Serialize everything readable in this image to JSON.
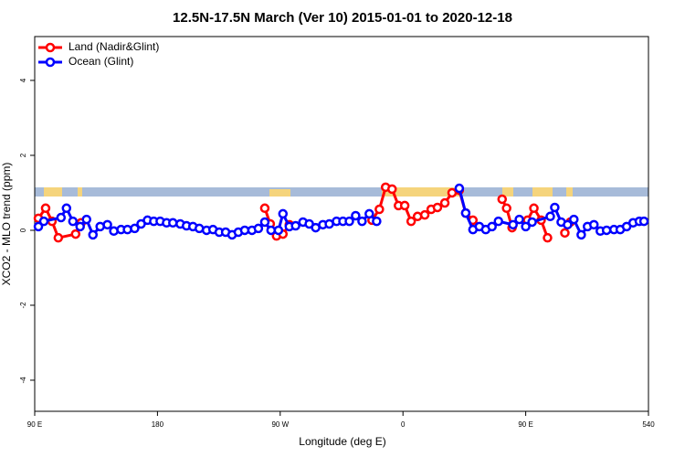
{
  "chart_data": {
    "type": "line",
    "title": "12.5N-17.5N March (Ver 10)   2015-01-01 to 2020-12-18",
    "x_label": "Longitude (deg E)",
    "y_label": "XCO2 - MLO trend (ppm)",
    "xlim": [
      90,
      540
    ],
    "ylim": [
      -4.83,
      5.17
    ],
    "xticks": [
      {
        "value": 90,
        "label": "90 E"
      },
      180,
      {
        "value": 270,
        "label": "90 W"
      },
      {
        "value": 360,
        "label": "0"
      },
      {
        "value": 450,
        "label": "90 E"
      },
      540
    ],
    "yticks": [
      -4,
      -2,
      0,
      2,
      4
    ],
    "legend": "top-left",
    "series": [
      {
        "name": "Land (Nadir&Glint)",
        "color": "#ff0000",
        "x": [
          92.7,
          98,
          102.7,
          107.3,
          120,
          124,
          null,
          258.7,
          262.7,
          267.3,
          272,
          276.7,
          null,
          337.3,
          342.7,
          347.3,
          352,
          356.7,
          361.3,
          366,
          370.7,
          376,
          380.7,
          385.3,
          390.7,
          396,
          401.3,
          406,
          411.3,
          null,
          432.7,
          436,
          440,
          null,
          451.3,
          456,
          461.3,
          466,
          null,
          478.7,
          482.7
        ],
        "values": [
          0.32,
          0.59,
          0.24,
          -0.2,
          -0.1,
          0.2,
          null,
          0.59,
          0.17,
          -0.15,
          -0.1,
          0.15,
          null,
          0.27,
          0.56,
          1.15,
          1.1,
          0.66,
          0.66,
          0.24,
          0.37,
          0.41,
          0.56,
          0.61,
          0.73,
          1.0,
          1.07,
          0.46,
          0.27,
          null,
          0.83,
          0.59,
          0.07,
          null,
          0.27,
          0.59,
          0.27,
          -0.2,
          null,
          -0.07,
          0.22
        ]
      },
      {
        "name": "Ocean (Glint)",
        "color": "#0000ff",
        "x": [
          92.7,
          96.7,
          109.3,
          113.3,
          118,
          123.3,
          128,
          132.7,
          138,
          143.3,
          148,
          153.3,
          158,
          163.3,
          168,
          172.7,
          177.3,
          182,
          186.7,
          191.3,
          196.7,
          201.3,
          206,
          210.7,
          216,
          220.7,
          225.3,
          230,
          234.7,
          239.3,
          244,
          249.3,
          254,
          258.7,
          263.3,
          268.7,
          272,
          276.7,
          281.3,
          286.7,
          291.3,
          296,
          301.3,
          306,
          311.3,
          316,
          320.7,
          325.3,
          330,
          335.3,
          340.7,
          null,
          401.3,
          406,
          411.3,
          416,
          420.7,
          425.3,
          430,
          440.7,
          445.3,
          450,
          454.7,
          468,
          471.3,
          476,
          480.7,
          485.3,
          490.7,
          495.3,
          500,
          504.7,
          509.3,
          514.7,
          519.3,
          524,
          528.7,
          533.3,
          536.7
        ],
        "values": [
          0.1,
          0.24,
          0.34,
          0.59,
          0.24,
          0.1,
          0.29,
          -0.12,
          0.1,
          0.15,
          -0.02,
          0.02,
          0.02,
          0.05,
          0.17,
          0.27,
          0.24,
          0.24,
          0.2,
          0.2,
          0.17,
          0.12,
          0.1,
          0.05,
          0,
          0.02,
          -0.05,
          -0.05,
          -0.12,
          -0.05,
          0,
          0,
          0.05,
          0.22,
          0,
          0,
          0.44,
          0.1,
          0.12,
          0.22,
          0.17,
          0.07,
          0.15,
          0.17,
          0.24,
          0.24,
          0.24,
          0.39,
          0.24,
          0.44,
          0.24,
          null,
          1.12,
          0.46,
          0.02,
          0.1,
          0.02,
          0.1,
          0.24,
          0.15,
          0.29,
          0.1,
          0.22,
          0.37,
          0.61,
          0.22,
          0.15,
          0.29,
          -0.12,
          0.1,
          0.15,
          -0.02,
          0,
          0.02,
          0.02,
          0.1,
          0.2,
          0.24,
          0.24
        ]
      }
    ]
  }
}
